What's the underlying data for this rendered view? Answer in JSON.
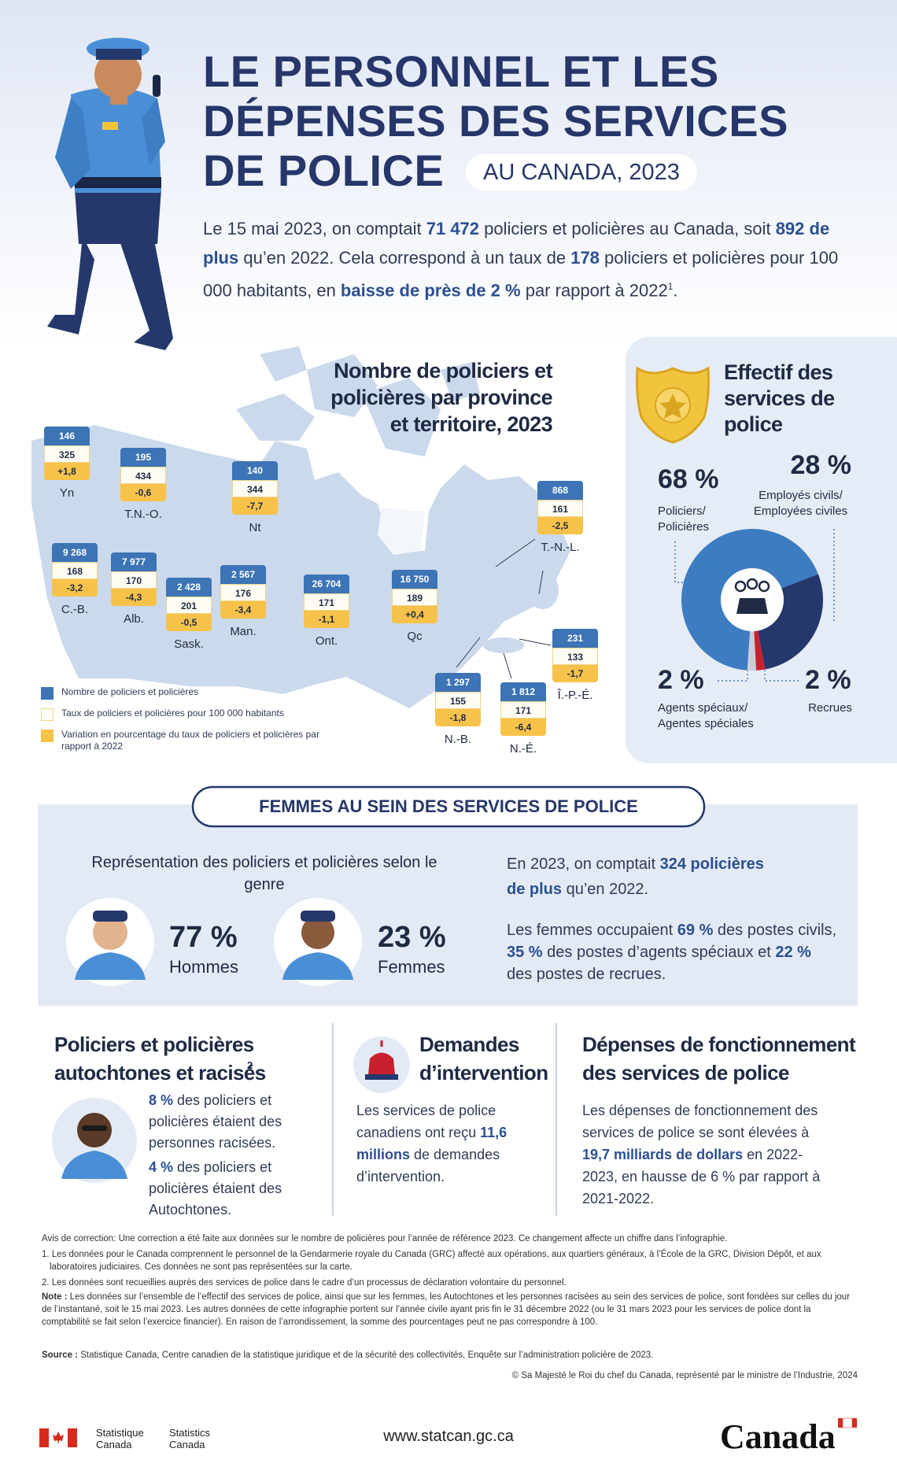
{
  "header": {
    "title_lines": [
      "LE PERSONNEL ET LES",
      "DÉPENSES DES SERVICES",
      "DE POLICE"
    ],
    "subtitle": "AU CANADA, 2023"
  },
  "intro": {
    "parts": [
      "Le 15 mai 2023, on comptait ",
      {
        "bold": "71 472"
      },
      " policiers et policières au Canada, soit ",
      {
        "bold": "892 de plus"
      },
      " qu’en 2022. Cela correspond à un taux de ",
      {
        "bold": "178"
      },
      " policiers et policières pour 100 000 habitants, en ",
      {
        "bold": "baisse de près de 2 %"
      },
      " par rapport à 2022"
    ],
    "note": "1",
    "end": "."
  },
  "map": {
    "title_lines": [
      "Nombre de policiers et",
      "policières par province",
      "et territoire, 2023"
    ],
    "regions": [
      {
        "name": "Yn",
        "count": "146",
        "rate": "325",
        "change": "+1,8"
      },
      {
        "name": "T.N.-O.",
        "count": "195",
        "rate": "434",
        "change": "-0,6"
      },
      {
        "name": "Nt",
        "count": "140",
        "rate": "344",
        "change": "-7,7"
      },
      {
        "name": "C.-B.",
        "count": "9 268",
        "rate": "168",
        "change": "-3,2"
      },
      {
        "name": "Alb.",
        "count": "7 977",
        "rate": "170",
        "change": "-4,3"
      },
      {
        "name": "Sask.",
        "count": "2 428",
        "rate": "201",
        "change": "-0,5"
      },
      {
        "name": "Man.",
        "count": "2 567",
        "rate": "176",
        "change": "-3,4"
      },
      {
        "name": "Ont.",
        "count": "26 704",
        "rate": "171",
        "change": "-1,1"
      },
      {
        "name": "Qc",
        "count": "16 750",
        "rate": "189",
        "change": "+0,4"
      },
      {
        "name": "T.-N.-L.",
        "count": "868",
        "rate": "161",
        "change": "-2,5"
      },
      {
        "name": "Î.-P.-É.",
        "count": "231",
        "rate": "133",
        "change": "-1,7"
      },
      {
        "name": "N.-B.",
        "count": "1 297",
        "rate": "155",
        "change": "-1,8"
      },
      {
        "name": "N.-É.",
        "count": "1 812",
        "rate": "171",
        "change": "-6,4"
      }
    ],
    "legend": [
      "Nombre de policiers et policières",
      "Taux de policiers et policières pour 100 000 habitants",
      "Variation en pourcentage du taux de policiers et policières par rapport à 2022"
    ]
  },
  "workforce": {
    "title_lines": [
      "Effectif des",
      "services de",
      "police"
    ],
    "segments": [
      {
        "value": 68,
        "value_label": "68 %",
        "label_lines": [
          "Policiers/",
          "Policières"
        ],
        "color": "#3d7cc0"
      },
      {
        "value": 28,
        "value_label": "28 %",
        "label_lines": [
          "Employés civils/",
          "Employées civiles"
        ],
        "color": "#24386b"
      },
      {
        "value": 2,
        "value_label": "2 %",
        "label_lines": [
          "Agents spéciaux/",
          "Agentes spéciales"
        ],
        "color": "#c8202f"
      },
      {
        "value": 2,
        "value_label": "2 %",
        "label_lines": [
          "Recrues"
        ],
        "color": "#c9ced8"
      }
    ]
  },
  "women": {
    "heading": "FEMMES AU SEIN DES SERVICES DE POLICE",
    "chart_title": "Représentation des policiers et policières selon le genre",
    "groups": [
      {
        "value_label": "77 %",
        "label": "Hommes"
      },
      {
        "value_label": "23 %",
        "label": "Femmes"
      }
    ],
    "paragraphs": [
      [
        "En 2023, on comptait ",
        {
          "bold": "324 policières de plus"
        },
        " qu’en 2022."
      ],
      [
        "Les femmes occupaient ",
        {
          "bold": "69 %"
        },
        " des postes civils, ",
        {
          "bold": "35 %"
        },
        " des postes d’agents spéciaux et ",
        {
          "bold": "22 %"
        },
        " des postes de recrues."
      ]
    ]
  },
  "indigenous": {
    "title_lines": [
      "Policiers et policières",
      "autochtones et racisés"
    ],
    "title_note": "2",
    "items": [
      [
        {
          "bold": "8 %"
        },
        " des policiers et policières étaient des personnes racisées."
      ],
      [
        {
          "bold": "4 %"
        },
        " des policiers et policières étaient des Autochtones."
      ]
    ]
  },
  "calls": {
    "title_lines": [
      "Demandes",
      "d’intervention"
    ],
    "parts": [
      "Les services de police canadiens ont reçu ",
      {
        "bold": "11,6 millions"
      },
      " de demandes d’intervention."
    ]
  },
  "spending": {
    "title_lines": [
      "Dépenses de fonctionnement",
      "des services de police"
    ],
    "parts": [
      "Les dépenses de fonctionnement des services de police se sont élevées à ",
      {
        "bold": "19,7 milliards de dollars"
      },
      " en 2022-2023, en hausse de 6 % par rapport à 2021-2022."
    ]
  },
  "footnotes": {
    "correction": "Avis de correction: Une correction a été faite aux données sur le nombre de policières pour l’année de référence 2023. Ce changement affecte un chiffre dans l’infographie.",
    "notes": [
      "1. Les données pour le Canada comprennent le personnel de la Gendarmerie royale du Canada (GRC) affecté aux opérations, aux quartiers généraux, à l’École de la GRC, Division Dépôt, et aux laboratoires judiciaires. Ces données ne sont pas représentées sur la carte.",
      "2. Les données sont recueillies auprès des services de police dans le cadre d’un processus de déclaration volontaire du personnel."
    ],
    "note": {
      "label": "Note :",
      "text": " Les données sur l’ensemble de l’effectif des services de police, ainsi que sur les femmes, les Autochtones et les personnes racisées au sein des services de police, sont fondées sur celles du jour de l’instantané, soit le 15 mai 2023. Les autres données de cette infographie portent sur l’année civile ayant pris fin le 31 décembre 2022 (ou le 31 mars 2023 pour les services de police dont la comptabilité se fait selon l’exercice financier). En raison de l’arrondissement, la somme des pourcentages peut ne pas correspondre à 100."
    },
    "source": {
      "label": "Source :",
      "text": " Statistique Canada, Centre canadien de la statistique juridique et de la sécurité des collectivités, Enquête sur l’administration policière de 2023."
    },
    "copyright": "© Sa Majesté le Roi du chef du Canada, représenté par le ministre de l’Industrie, 2024"
  },
  "footer": {
    "statcan_fr": [
      "Statistique",
      "Canada"
    ],
    "statcan_en": [
      "Statistics",
      "Canada"
    ],
    "url": "www.statcan.gc.ca",
    "wordmark": "Canada"
  }
}
